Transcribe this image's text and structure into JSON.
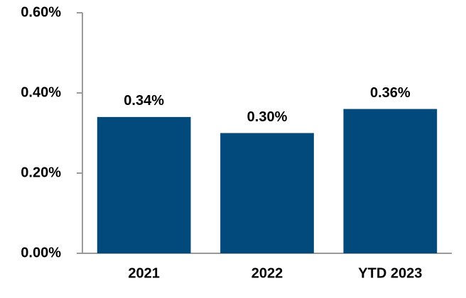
{
  "chart_data": {
    "type": "bar",
    "categories": [
      "2021",
      "2022",
      "YTD 2023"
    ],
    "values": [
      0.34,
      0.3,
      0.36
    ],
    "value_labels": [
      "0.34%",
      "0.30%",
      "0.36%"
    ],
    "color": "#034a7c",
    "ylim": [
      0,
      0.6
    ],
    "yticks": [
      {
        "value": 0,
        "label": "0.00%"
      },
      {
        "value": 0.2,
        "label": "0.20%"
      },
      {
        "value": 0.4,
        "label": "0.40%"
      },
      {
        "value": 0.6,
        "label": "0.60%"
      }
    ],
    "grid": false
  }
}
